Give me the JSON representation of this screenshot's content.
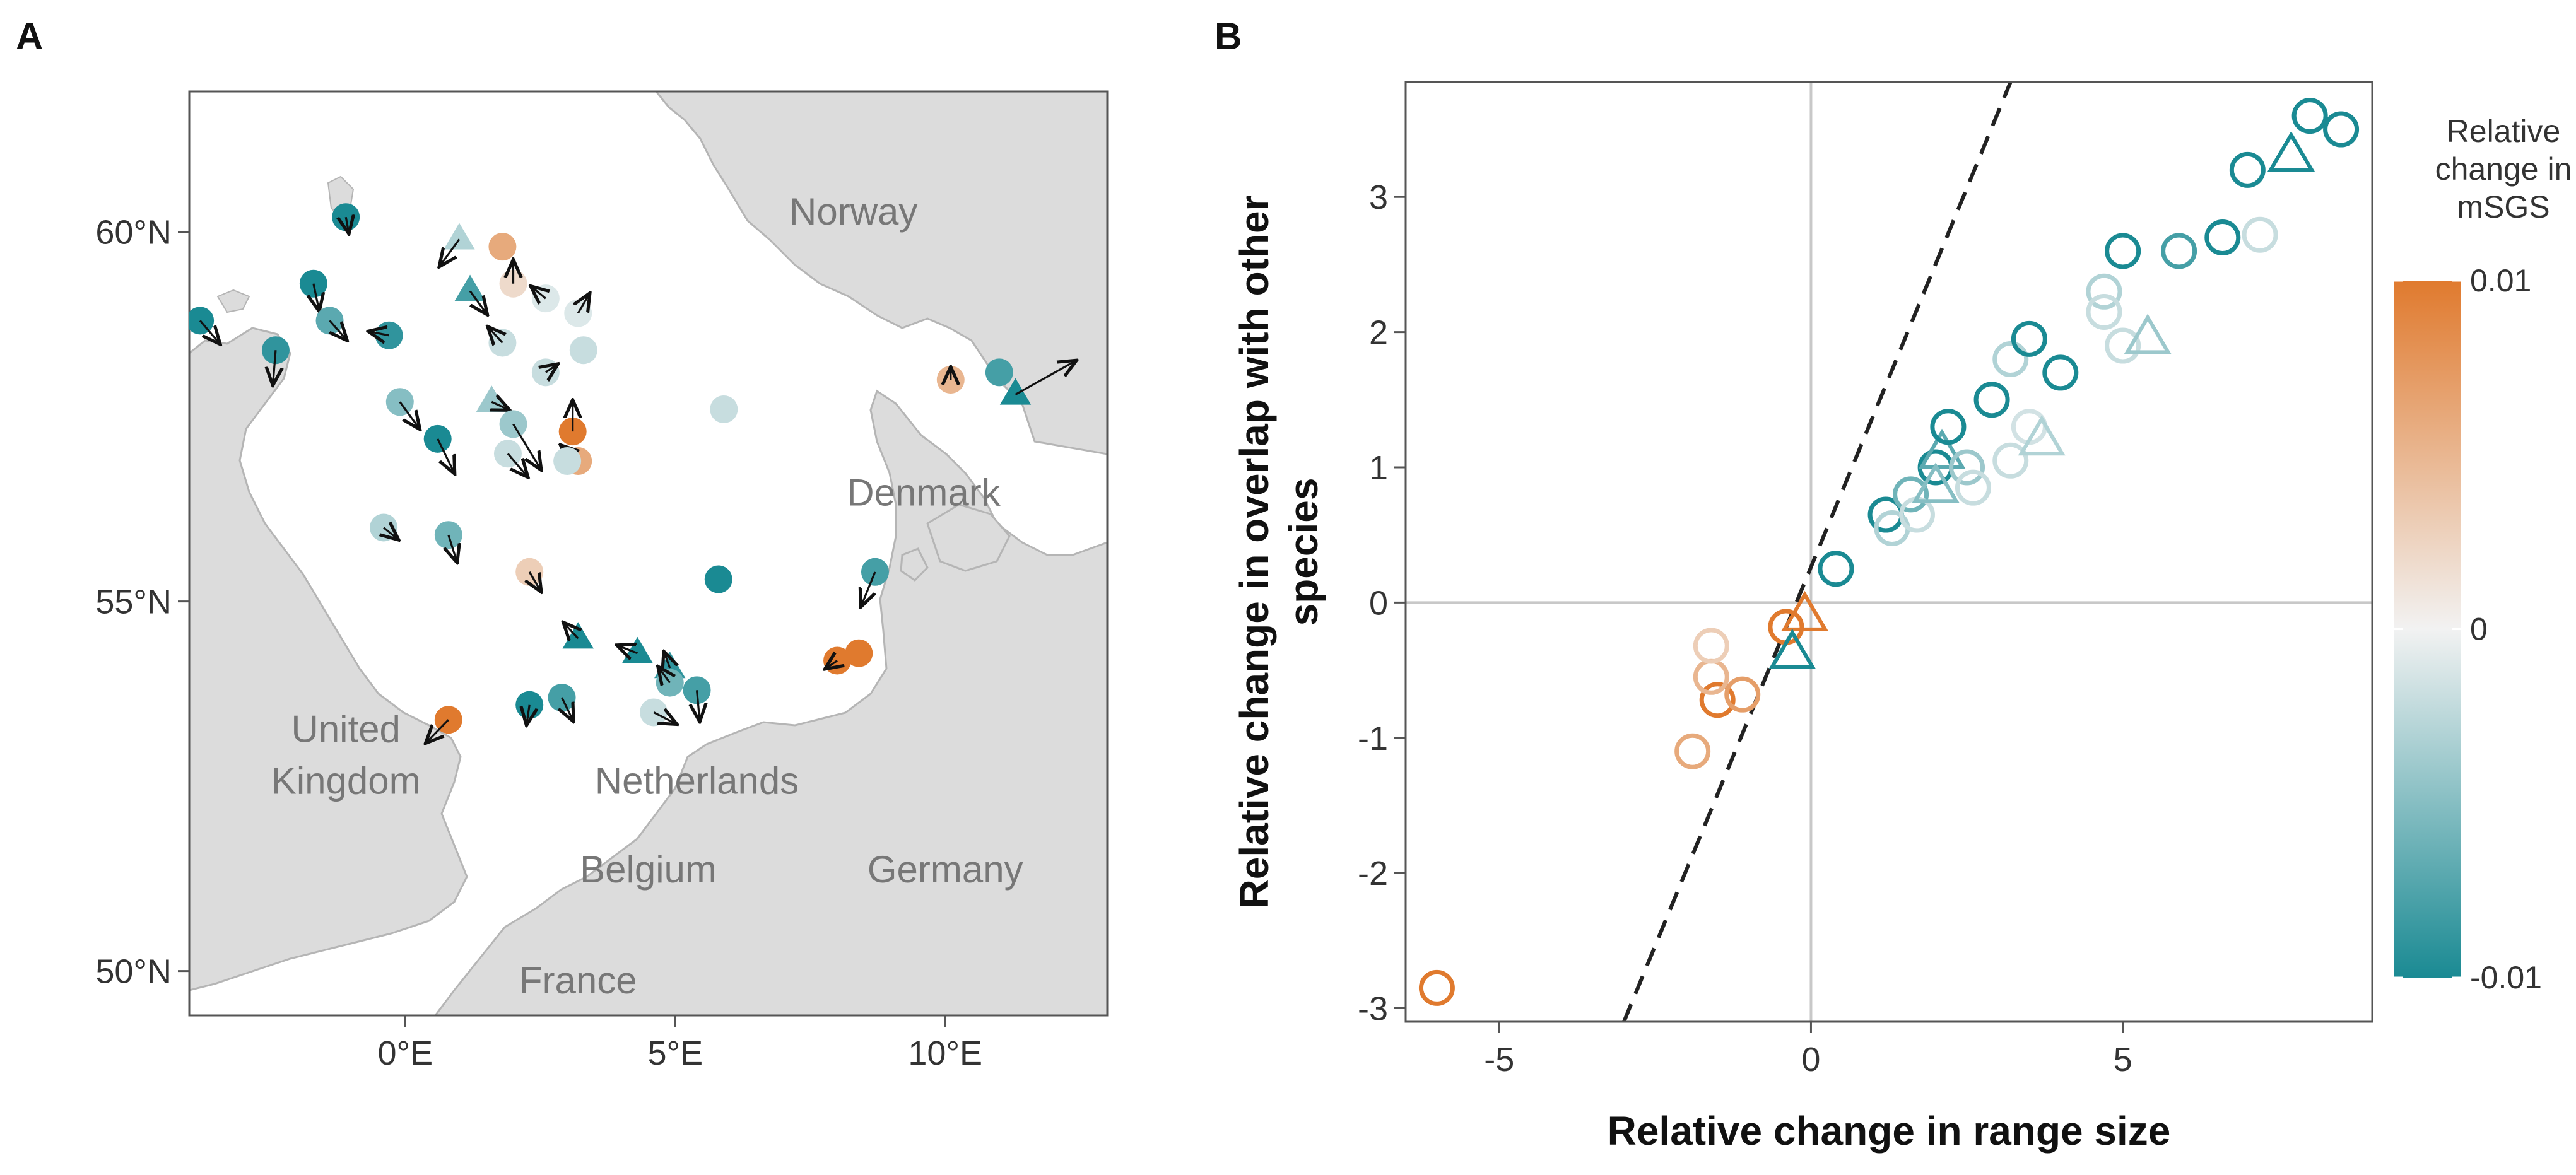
{
  "chart_data": [
    {
      "panel": "A",
      "type": "map",
      "x_ticks": [
        "0°E",
        "5°E",
        "10°E"
      ],
      "x_tick_values": [
        0,
        5,
        10
      ],
      "y_ticks": [
        "60°N",
        "55°N",
        "50°N"
      ],
      "y_tick_values": [
        60,
        55,
        50
      ],
      "xlim": [
        -4,
        13
      ],
      "ylim": [
        49.4,
        61.9
      ],
      "place_labels": [
        {
          "text": "Norway",
          "lon": 8.3,
          "lat": 60.1
        },
        {
          "text": "Denmark",
          "lon": 9.6,
          "lat": 56.3
        },
        {
          "text": "United",
          "lon": -1.1,
          "lat": 53.1
        },
        {
          "text": "Kingdom",
          "lon": -1.1,
          "lat": 52.4
        },
        {
          "text": "Netherlands",
          "lon": 5.4,
          "lat": 52.4
        },
        {
          "text": "Belgium",
          "lon": 4.5,
          "lat": 51.2
        },
        {
          "text": "Germany",
          "lon": 10.0,
          "lat": 51.2
        },
        {
          "text": "France",
          "lon": 3.2,
          "lat": 49.7
        }
      ],
      "points": [
        {
          "lon": -3.8,
          "lat": 58.8,
          "v": -1.0,
          "shape": "circle",
          "dx": 0.35,
          "dy": -0.3
        },
        {
          "lon": -2.4,
          "lat": 58.4,
          "v": -0.9,
          "shape": "circle",
          "dx": -0.05,
          "dy": -0.45
        },
        {
          "lon": -1.7,
          "lat": 59.3,
          "v": -1.0,
          "shape": "circle",
          "dx": 0.1,
          "dy": -0.35
        },
        {
          "lon": -1.4,
          "lat": 58.8,
          "v": -0.7,
          "shape": "circle",
          "dx": 0.3,
          "dy": -0.25
        },
        {
          "lon": -1.1,
          "lat": 60.2,
          "v": -1.0,
          "shape": "circle",
          "dx": 0.05,
          "dy": -0.2
        },
        {
          "lon": -0.3,
          "lat": 58.6,
          "v": -0.9,
          "shape": "circle",
          "dx": -0.35,
          "dy": 0.05
        },
        {
          "lon": 1.0,
          "lat": 59.9,
          "v": -0.3,
          "shape": "triangle",
          "dx": -0.35,
          "dy": -0.35
        },
        {
          "lon": 1.2,
          "lat": 59.2,
          "v": -0.8,
          "shape": "triangle",
          "dx": 0.3,
          "dy": -0.3
        },
        {
          "lon": 1.8,
          "lat": 59.8,
          "v": 0.6,
          "shape": "circle",
          "dx": 0.0,
          "dy": 0.0
        },
        {
          "lon": 2.0,
          "lat": 59.3,
          "v": 0.2,
          "shape": "circle",
          "dx": 0.0,
          "dy": 0.3
        },
        {
          "lon": 2.6,
          "lat": 59.1,
          "v": -0.1,
          "shape": "circle",
          "dx": -0.25,
          "dy": 0.15
        },
        {
          "lon": 3.2,
          "lat": 58.9,
          "v": -0.1,
          "shape": "circle",
          "dx": 0.2,
          "dy": 0.25
        },
        {
          "lon": 1.8,
          "lat": 58.5,
          "v": -0.2,
          "shape": "circle",
          "dx": -0.25,
          "dy": 0.2
        },
        {
          "lon": 2.6,
          "lat": 58.1,
          "v": -0.2,
          "shape": "circle",
          "dx": 0.2,
          "dy": 0.1
        },
        {
          "lon": 3.3,
          "lat": 58.4,
          "v": -0.2,
          "shape": "circle",
          "dx": 0.0,
          "dy": 0.0
        },
        {
          "lon": -0.1,
          "lat": 57.7,
          "v": -0.5,
          "shape": "circle",
          "dx": 0.35,
          "dy": -0.35
        },
        {
          "lon": 0.6,
          "lat": 57.2,
          "v": -1.0,
          "shape": "circle",
          "dx": 0.3,
          "dy": -0.45
        },
        {
          "lon": 1.6,
          "lat": 57.7,
          "v": -0.4,
          "shape": "triangle",
          "dx": 0.3,
          "dy": -0.1
        },
        {
          "lon": 2.0,
          "lat": 57.4,
          "v": -0.4,
          "shape": "circle",
          "dx": 0.5,
          "dy": -0.6
        },
        {
          "lon": 1.9,
          "lat": 57.0,
          "v": -0.2,
          "shape": "circle",
          "dx": 0.35,
          "dy": -0.3
        },
        {
          "lon": 3.1,
          "lat": 57.3,
          "v": 1.0,
          "shape": "circle",
          "dx": 0.0,
          "dy": 0.4
        },
        {
          "lon": 3.2,
          "lat": 56.9,
          "v": 0.6,
          "shape": "circle",
          "dx": -0.3,
          "dy": 0.2
        },
        {
          "lon": 3.0,
          "lat": 56.9,
          "v": -0.2,
          "shape": "circle",
          "dx": 0.0,
          "dy": 0.0
        },
        {
          "lon": 5.9,
          "lat": 57.6,
          "v": -0.2,
          "shape": "circle",
          "dx": 0.0,
          "dy": 0.0
        },
        {
          "lon": -0.4,
          "lat": 56.0,
          "v": -0.3,
          "shape": "circle",
          "dx": 0.25,
          "dy": -0.15
        },
        {
          "lon": 0.8,
          "lat": 55.9,
          "v": -0.6,
          "shape": "circle",
          "dx": 0.15,
          "dy": -0.35
        },
        {
          "lon": 2.3,
          "lat": 55.4,
          "v": 0.3,
          "shape": "circle",
          "dx": 0.2,
          "dy": -0.25
        },
        {
          "lon": 5.8,
          "lat": 55.3,
          "v": -1.0,
          "shape": "circle",
          "dx": 0.0,
          "dy": 0.0
        },
        {
          "lon": 8.7,
          "lat": 55.4,
          "v": -0.8,
          "shape": "circle",
          "dx": -0.25,
          "dy": -0.45
        },
        {
          "lon": 10.1,
          "lat": 58.0,
          "v": 0.5,
          "shape": "circle",
          "dx": 0.0,
          "dy": 0.15
        },
        {
          "lon": 11.0,
          "lat": 58.1,
          "v": -0.8,
          "shape": "circle",
          "dx": 0.0,
          "dy": 0.0
        },
        {
          "lon": 11.3,
          "lat": 57.8,
          "v": -1.0,
          "shape": "triangle",
          "dx": 1.1,
          "dy": 0.45
        },
        {
          "lon": 3.2,
          "lat": 54.5,
          "v": -1.0,
          "shape": "triangle",
          "dx": -0.25,
          "dy": 0.2
        },
        {
          "lon": 4.3,
          "lat": 54.3,
          "v": -1.0,
          "shape": "triangle",
          "dx": -0.35,
          "dy": 0.1
        },
        {
          "lon": 4.9,
          "lat": 54.1,
          "v": -0.9,
          "shape": "triangle",
          "dx": -0.1,
          "dy": 0.2
        },
        {
          "lon": 0.8,
          "lat": 53.4,
          "v": 1.0,
          "shape": "circle",
          "dx": -0.4,
          "dy": -0.3
        },
        {
          "lon": 2.3,
          "lat": 53.6,
          "v": -1.0,
          "shape": "circle",
          "dx": -0.05,
          "dy": -0.25
        },
        {
          "lon": 2.9,
          "lat": 53.7,
          "v": -0.8,
          "shape": "circle",
          "dx": 0.2,
          "dy": -0.3
        },
        {
          "lon": 4.9,
          "lat": 53.9,
          "v": -0.6,
          "shape": "circle",
          "dx": -0.2,
          "dy": 0.2
        },
        {
          "lon": 5.4,
          "lat": 53.8,
          "v": -0.8,
          "shape": "circle",
          "dx": 0.05,
          "dy": -0.4
        },
        {
          "lon": 4.6,
          "lat": 53.5,
          "v": -0.2,
          "shape": "circle",
          "dx": 0.4,
          "dy": -0.15
        },
        {
          "lon": 8.0,
          "lat": 54.2,
          "v": 1.0,
          "shape": "circle",
          "dx": -0.2,
          "dy": -0.1
        },
        {
          "lon": 8.4,
          "lat": 54.3,
          "v": 1.0,
          "shape": "circle",
          "dx": 0.0,
          "dy": 0.0
        }
      ]
    },
    {
      "panel": "B",
      "type": "scatter",
      "xlabel": "Relative change in range size",
      "ylabel_lines": [
        "Relative change in overlap with other",
        "species"
      ],
      "xlim": [
        -6.5,
        9.0
      ],
      "ylim": [
        -3.1,
        3.85
      ],
      "x_ticks": [
        -5,
        0,
        5
      ],
      "y_ticks": [
        -3,
        -2,
        -1,
        0,
        1,
        2,
        3
      ],
      "reference_lines": {
        "x": 0,
        "y": 0
      },
      "fit_line": {
        "style": "dashed",
        "x1": -3.0,
        "y1": -3.1,
        "x2": 3.2,
        "y2": 3.85
      },
      "legend": {
        "title_lines": [
          "Relative",
          "change in",
          "mSGS"
        ],
        "labels": [
          "0.01",
          "0",
          "-0.01"
        ],
        "values": [
          0.01,
          0,
          -0.01
        ],
        "placement": "right",
        "colors": {
          "high": "#E07A2E",
          "mid": "#F2F2F2",
          "low": "#1A8A93"
        }
      },
      "points": [
        {
          "x": -6.0,
          "y": -2.85,
          "v": 1.0,
          "shape": "circle"
        },
        {
          "x": -1.9,
          "y": -1.1,
          "v": 0.6,
          "shape": "circle"
        },
        {
          "x": -1.5,
          "y": -0.72,
          "v": 1.0,
          "shape": "circle"
        },
        {
          "x": -1.6,
          "y": -0.55,
          "v": 0.5,
          "shape": "circle"
        },
        {
          "x": -1.1,
          "y": -0.68,
          "v": 0.7,
          "shape": "circle"
        },
        {
          "x": -1.6,
          "y": -0.32,
          "v": 0.3,
          "shape": "circle"
        },
        {
          "x": -0.4,
          "y": -0.18,
          "v": 1.0,
          "shape": "circle"
        },
        {
          "x": -0.1,
          "y": -0.1,
          "v": 1.0,
          "shape": "triangle"
        },
        {
          "x": -0.3,
          "y": -0.38,
          "v": -1.0,
          "shape": "triangle"
        },
        {
          "x": 0.4,
          "y": 0.25,
          "v": -1.0,
          "shape": "circle"
        },
        {
          "x": 1.2,
          "y": 0.65,
          "v": -1.0,
          "shape": "circle"
        },
        {
          "x": 1.3,
          "y": 0.55,
          "v": -0.3,
          "shape": "circle"
        },
        {
          "x": 1.6,
          "y": 0.8,
          "v": -0.6,
          "shape": "circle"
        },
        {
          "x": 1.7,
          "y": 0.65,
          "v": -0.2,
          "shape": "circle"
        },
        {
          "x": 2.0,
          "y": 1.0,
          "v": -1.0,
          "shape": "circle"
        },
        {
          "x": 2.1,
          "y": 1.1,
          "v": -0.7,
          "shape": "triangle"
        },
        {
          "x": 2.0,
          "y": 0.85,
          "v": -0.5,
          "shape": "triangle"
        },
        {
          "x": 2.2,
          "y": 1.3,
          "v": -1.0,
          "shape": "circle"
        },
        {
          "x": 2.5,
          "y": 1.0,
          "v": -0.4,
          "shape": "circle"
        },
        {
          "x": 2.6,
          "y": 0.85,
          "v": -0.2,
          "shape": "circle"
        },
        {
          "x": 2.9,
          "y": 1.5,
          "v": -1.0,
          "shape": "circle"
        },
        {
          "x": 3.2,
          "y": 1.05,
          "v": -0.2,
          "shape": "circle"
        },
        {
          "x": 3.5,
          "y": 1.3,
          "v": -0.15,
          "shape": "circle"
        },
        {
          "x": 3.7,
          "y": 1.2,
          "v": -0.3,
          "shape": "triangle"
        },
        {
          "x": 3.2,
          "y": 1.8,
          "v": -0.3,
          "shape": "circle"
        },
        {
          "x": 3.5,
          "y": 1.95,
          "v": -1.0,
          "shape": "circle"
        },
        {
          "x": 4.0,
          "y": 1.7,
          "v": -1.0,
          "shape": "circle"
        },
        {
          "x": 4.7,
          "y": 2.3,
          "v": -0.3,
          "shape": "circle"
        },
        {
          "x": 4.7,
          "y": 2.15,
          "v": -0.2,
          "shape": "circle"
        },
        {
          "x": 5.0,
          "y": 1.9,
          "v": -0.2,
          "shape": "circle"
        },
        {
          "x": 5.4,
          "y": 1.95,
          "v": -0.4,
          "shape": "triangle"
        },
        {
          "x": 5.0,
          "y": 2.6,
          "v": -1.0,
          "shape": "circle"
        },
        {
          "x": 5.9,
          "y": 2.6,
          "v": -0.8,
          "shape": "circle"
        },
        {
          "x": 6.6,
          "y": 2.7,
          "v": -1.0,
          "shape": "circle"
        },
        {
          "x": 7.2,
          "y": 2.72,
          "v": -0.2,
          "shape": "circle"
        },
        {
          "x": 7.0,
          "y": 3.2,
          "v": -1.0,
          "shape": "circle"
        },
        {
          "x": 7.7,
          "y": 3.3,
          "v": -1.0,
          "shape": "triangle"
        },
        {
          "x": 8.0,
          "y": 3.6,
          "v": -1.0,
          "shape": "circle"
        },
        {
          "x": 8.5,
          "y": 3.5,
          "v": -1.0,
          "shape": "circle"
        }
      ]
    }
  ],
  "colors": {
    "teal": "#1A8A93",
    "orange": "#E07A2E",
    "land": "#DCDCDC",
    "coast": "#B5B5B5",
    "gridline": "#C8C8C8",
    "arrow": "#111111"
  }
}
